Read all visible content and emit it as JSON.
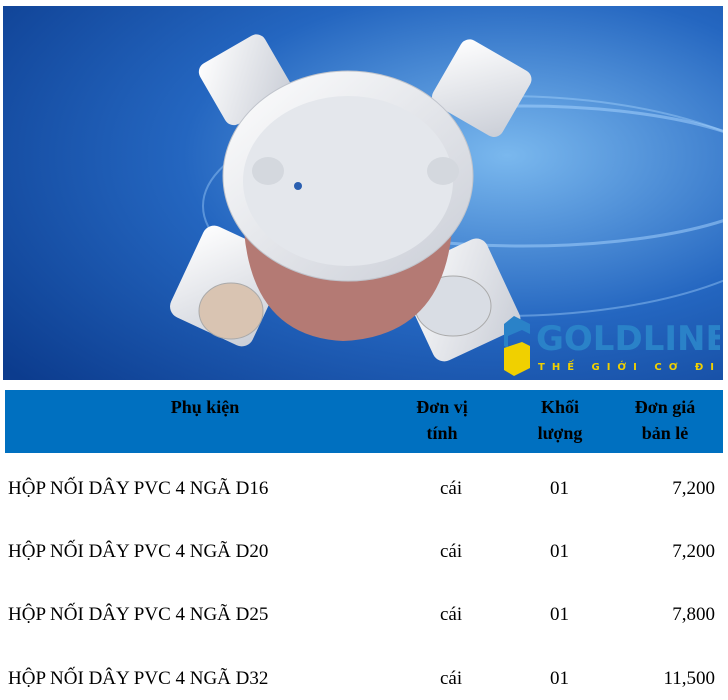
{
  "image": {
    "alt_icon": "pvc-4-way-junction-box-photo",
    "background_color": "#1a56b0"
  },
  "table": {
    "header_color": "#0070C0",
    "headers": {
      "product": "Phụ kiện",
      "unit": "Đơn vị tính",
      "weight": "Khối lượng",
      "price": "Đơn giá bản lẻ"
    },
    "rows": [
      {
        "product": "HỘP NỐI DÂY PVC 4 NGÃ D16",
        "unit": "cái",
        "weight": "01",
        "price": "7,200"
      },
      {
        "product": "HỘP NỐI DÂY PVC 4 NGÃ D20",
        "unit": "cái",
        "weight": "01",
        "price": "7,200"
      },
      {
        "product": "HỘP NỐI DÂY PVC 4 NGÃ D25",
        "unit": "cái",
        "weight": "01",
        "price": "7,800"
      },
      {
        "product": "HỘP NỐI DÂY PVC 4 NGÃ D32",
        "unit": "cái",
        "weight": "01",
        "price": "11,500"
      }
    ]
  },
  "watermark": {
    "brand": "GOLDLINE",
    "tagline": "THẾ GIỚI CƠ ĐIỆN",
    "blue": "#2a82c8",
    "yellow": "#f0d000"
  }
}
